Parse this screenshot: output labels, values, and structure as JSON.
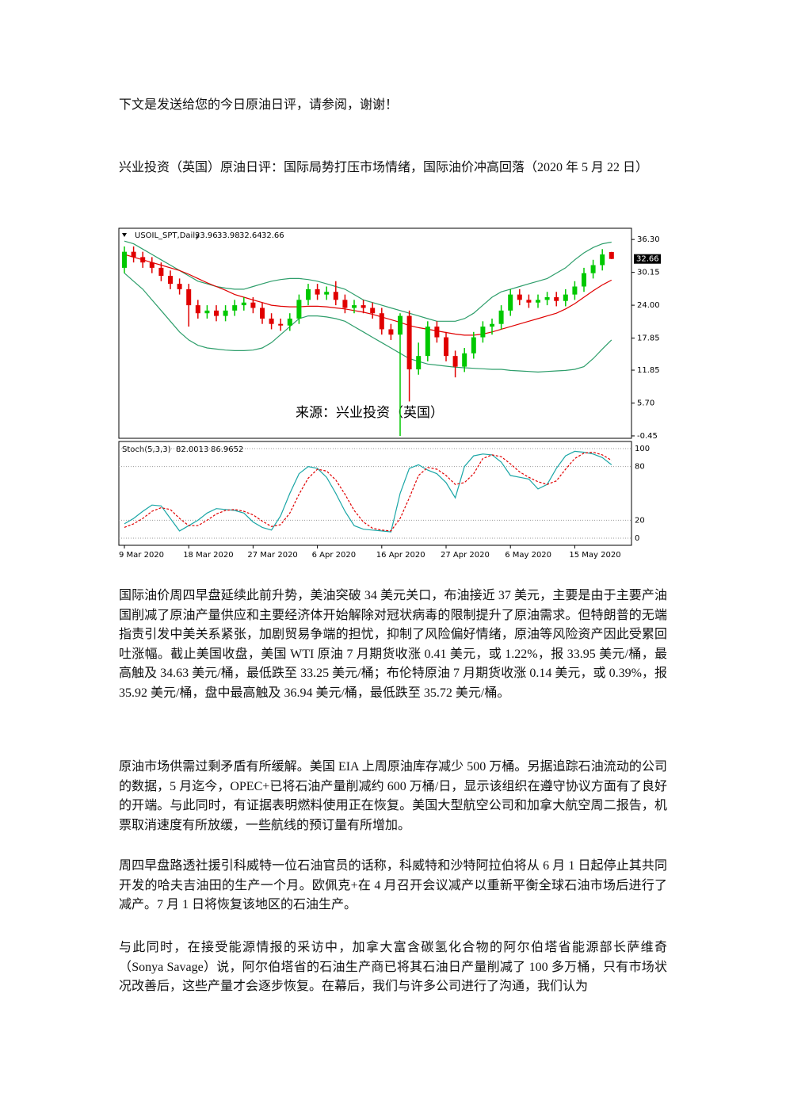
{
  "intro": "下文是发送给您的今日原油日评，请参阅，谢谢！",
  "title": "兴业投资（英国）原油日评：国际局势打压市场情绪，国际油价冲高回落（2020 年 5 月 22 日）",
  "chart_data": [
    {
      "type": "candlestick",
      "symbol": "USOIL_SPT,Daily",
      "watermark": "来源：兴业投资（英国）",
      "categories": [
        "9 Mar 2020",
        null,
        null,
        null,
        null,
        null,
        null,
        "18 Mar 2020",
        null,
        null,
        null,
        null,
        null,
        null,
        "27 Mar 2020",
        null,
        null,
        null,
        null,
        null,
        null,
        "6 Apr 2020",
        null,
        null,
        null,
        null,
        null,
        null,
        "16 Apr 2020",
        null,
        null,
        null,
        null,
        null,
        null,
        "27 Apr 2020",
        null,
        null,
        null,
        null,
        null,
        null,
        "6 May 2020",
        null,
        null,
        null,
        null,
        null,
        null,
        "15 May 2020",
        null,
        null,
        null,
        null
      ],
      "candles": {
        "open": [
          31,
          34,
          33,
          32,
          31,
          29.5,
          28,
          27,
          24,
          22.5,
          23,
          22,
          23,
          24,
          24.5,
          23.5,
          21.5,
          20.5,
          20.2,
          21.5,
          25,
          27,
          26,
          26.5,
          25,
          23.5,
          24,
          23.5,
          22.5,
          19.5,
          18.5,
          22,
          12,
          14.5,
          20,
          18,
          14.5,
          12.5,
          15,
          18,
          20,
          20.5,
          23,
          26,
          25,
          24.5,
          25,
          25.5,
          24.8,
          26,
          27.5,
          30,
          31.5,
          33.96
        ],
        "high": [
          35,
          35,
          34,
          33,
          32,
          30.5,
          29,
          28,
          25,
          24,
          24,
          24,
          25,
          25.5,
          25.5,
          24.5,
          22.5,
          21.5,
          22.5,
          26,
          28,
          28,
          27.5,
          28.5,
          26,
          25,
          25,
          24.5,
          23.5,
          20.5,
          22.5,
          23,
          17,
          21,
          21,
          19,
          15.5,
          16,
          19,
          21,
          21.5,
          24,
          27,
          27,
          26,
          26,
          26.5,
          26.5,
          27,
          28.5,
          31,
          32.5,
          34.5,
          33.98
        ],
        "low": [
          30,
          32,
          31,
          30,
          28.5,
          27,
          26,
          20,
          21.5,
          21.5,
          21,
          21,
          22,
          23,
          22.5,
          20.5,
          19.5,
          19.2,
          19.2,
          20.5,
          24,
          25,
          25,
          24,
          22.5,
          22.5,
          22.5,
          21.5,
          18.5,
          17.5,
          -0.45,
          6,
          11,
          13.5,
          17,
          13.5,
          10.5,
          11.5,
          14,
          17,
          18.5,
          19.5,
          22,
          24,
          23.5,
          23.5,
          24,
          23.8,
          23.8,
          25,
          26.5,
          29,
          30.5,
          32.64
        ],
        "close": [
          34,
          33,
          32,
          31,
          29.5,
          28,
          27,
          24,
          22.5,
          23,
          22,
          23,
          24,
          24.5,
          23.5,
          21.5,
          20.5,
          20.2,
          21.5,
          25,
          27,
          26,
          26.5,
          25,
          23.5,
          24,
          23.5,
          22.5,
          19.5,
          18.5,
          22,
          12,
          14.5,
          20,
          18,
          14.5,
          12.5,
          15,
          18,
          20,
          20.5,
          23,
          26,
          25,
          24.5,
          25,
          25.5,
          24.8,
          26,
          27.5,
          30,
          31.5,
          33.5,
          32.66
        ]
      },
      "up_color": "#00c800",
      "down_color": "#e00000",
      "series": [
        {
          "color": "#2e9e6b",
          "values": [
            36,
            35.5,
            34.5,
            33.5,
            32.5,
            31.5,
            30.5,
            29.5,
            28.5,
            28,
            27.5,
            27.2,
            27,
            27,
            27.5,
            28,
            28.5,
            28.8,
            29,
            29,
            28.8,
            28.5,
            28,
            27.5,
            27,
            26,
            25,
            24.5,
            24,
            23.5,
            23,
            22.5,
            22,
            21.5,
            21,
            21,
            21,
            21.5,
            22.5,
            24,
            25.5,
            26.5,
            27,
            27.5,
            28,
            28.5,
            29,
            30,
            31,
            32.5,
            33.8,
            34.8,
            35.5,
            35.8
          ]
        },
        {
          "color": "#e00000",
          "values": [
            33.5,
            33,
            32.5,
            32,
            31.5,
            31,
            30.5,
            29.8,
            29,
            28.2,
            27.5,
            26.8,
            26,
            25.5,
            25,
            24.5,
            24,
            23.8,
            23.7,
            23.7,
            23.8,
            23.8,
            23.7,
            23.5,
            23.3,
            23,
            22.7,
            22.3,
            21.8,
            21.3,
            20.8,
            20.2,
            19.8,
            19.5,
            19.2,
            18.9,
            18.6,
            18.4,
            18.4,
            18.6,
            19,
            19.5,
            20,
            20.5,
            21,
            21.5,
            22,
            22.5,
            23.3,
            24.3,
            25.5,
            26.7,
            27.8,
            28.7
          ]
        },
        {
          "color": "#2e9e6b",
          "values": [
            30,
            28.5,
            27,
            25,
            23,
            21,
            19,
            17.5,
            16.5,
            16,
            15.8,
            15.6,
            15.5,
            15.5,
            15.6,
            16,
            17,
            18.5,
            20,
            21.5,
            22,
            22,
            21.8,
            21.5,
            21,
            20,
            19,
            18,
            17,
            16,
            15,
            14,
            13.5,
            13,
            12.8,
            12.6,
            12.4,
            12.3,
            12.2,
            12.1,
            12,
            12,
            11.8,
            11.7,
            11.6,
            11.5,
            11.6,
            11.7,
            11.8,
            12,
            12.5,
            14,
            15.8,
            17.5
          ]
        }
      ],
      "ylim": [
        -0.9,
        38.4
      ],
      "yticks": [
        {
          "value": 36.3,
          "label": "36.30"
        },
        30.15,
        {
          "value": 24,
          "label": "24.00"
        },
        17.85,
        11.85,
        {
          "value": 5.7,
          "label": "5.70"
        },
        -0.45
      ]
    },
    {
      "type": "line",
      "indicator": "Stoch(5,3,3)",
      "series": [
        {
          "color": "#1aa6a6",
          "style": "solid",
          "values": [
            16,
            22,
            30,
            37,
            36,
            22,
            8,
            14,
            20,
            28,
            33,
            32,
            31,
            28,
            18,
            12,
            9,
            25,
            50,
            72,
            80,
            78,
            68,
            50,
            30,
            14,
            10,
            9,
            8,
            7,
            50,
            78,
            82,
            76,
            72,
            62,
            45,
            80,
            92,
            94,
            93,
            85,
            70,
            68,
            66,
            55,
            60,
            78,
            92,
            97,
            96,
            94,
            90,
            82.0013
          ]
        },
        {
          "color": "#e00000",
          "style": "dashed",
          "values": [
            12,
            16,
            22,
            30,
            34,
            32,
            22,
            14,
            14,
            20,
            27,
            31,
            32,
            30,
            26,
            19,
            13,
            15,
            28,
            49,
            67,
            77,
            75,
            65,
            49,
            31,
            18,
            11,
            9,
            8,
            22,
            45,
            70,
            79,
            77,
            70,
            60,
            62,
            72,
            89,
            93,
            91,
            83,
            74,
            68,
            63,
            60,
            64,
            77,
            89,
            95,
            96,
            93,
            86.9652
          ]
        }
      ],
      "ylim": [
        -8,
        108
      ],
      "yticks": [
        100,
        80,
        20,
        0
      ]
    }
  ],
  "paragraphs": [
    "国际油价周四早盘延续此前升势，美油突破 34 美元关口，布油接近 37 美元，主要是由于主要产油国削减了原油产量供应和主要经济体开始解除对冠状病毒的限制提升了原油需求。但特朗普的无端指责引发中美关系紧张，加剧贸易争端的担忧，抑制了风险偏好情绪，原油等风险资产因此受累回吐涨幅。截止美国收盘，美国 WTI 原油 7 月期货收涨 0.41 美元，或 1.22%，报 33.95 美元/桶，最高触及 34.63 美元/桶，最低跌至 33.25 美元/桶；布伦特原油 7 月期货收涨 0.14 美元，或 0.39%，报 35.92 美元/桶，盘中最高触及 36.94 美元/桶，最低跌至 35.72 美元/桶。",
    "原油市场供需过剩矛盾有所缓解。美国 EIA 上周原油库存减少 500 万桶。另据追踪石油流动的公司的数据，5 月迄今，OPEC+已将石油产量削减约 600 万桶/日，显示该组织在遵守协议方面有了良好的开端。与此同时，有证据表明燃料使用正在恢复。美国大型航空公司和加拿大航空周二报告，机票取消速度有所放缓，一些航线的预订量有所增加。",
    "周四早盘路透社援引科威特一位石油官员的话称，科威特和沙特阿拉伯将从 6 月 1 日起停止其共同开发的哈夫吉油田的生产一个月。欧佩克+在 4 月召开会议减产以重新平衡全球石油市场后进行了减产。7 月 1 日将恢复该地区的石油生产。",
    "与此同时，在接受能源情报的采访中，加拿大富含碳氢化合物的阿尔伯塔省能源部长萨维奇（Sonya Savage）说，阿尔伯塔省的石油生产商已将其石油日产量削减了 100 多万桶，只有市场状况改善后，这些产量才会逐步恢复。在幕后，我们与许多公司进行了沟通，我们认为"
  ]
}
